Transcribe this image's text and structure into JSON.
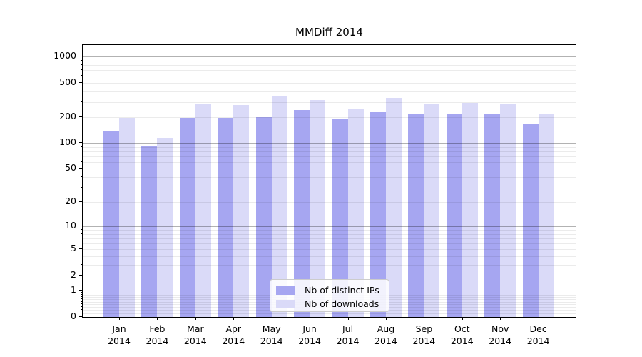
{
  "title": "MMDiff 2014",
  "colors": {
    "ips_bar": "#a6a6f1",
    "downloads_bar": "#dadaf8",
    "grid_major": "rgba(0,0,0,0.30)",
    "grid_minor": "rgba(0,0,0,0.08)",
    "spine": "#000000",
    "text": "#000000",
    "legend_border": "#cccccc",
    "legend_background": "rgba(255,255,255,0.85)"
  },
  "legend": {
    "items": [
      {
        "label": "Nb of distinct IPs",
        "series": "ips"
      },
      {
        "label": "Nb of downloads",
        "series": "downloads"
      }
    ]
  },
  "y_axis": {
    "tick_labels": [
      "1000",
      "500",
      "200",
      "100",
      "50",
      "20",
      "10",
      "5",
      "2",
      "1",
      "0"
    ],
    "tick_values": [
      1000,
      500,
      200,
      100,
      50,
      20,
      10,
      5,
      2,
      1,
      0
    ],
    "major_decades": [
      1,
      10,
      100,
      1000
    ],
    "minor_values": [
      0.1,
      0.2,
      0.3,
      0.4,
      0.5,
      0.6,
      0.7,
      0.8,
      0.9,
      2,
      3,
      4,
      5,
      6,
      7,
      8,
      9,
      20,
      30,
      40,
      50,
      60,
      70,
      80,
      90,
      200,
      300,
      400,
      500,
      600,
      700,
      800,
      900
    ]
  },
  "chart_data": {
    "type": "bar",
    "title": "MMDiff 2014",
    "categories": [
      "Jan 2014",
      "Feb 2014",
      "Mar 2014",
      "Apr 2014",
      "May 2014",
      "Jun 2014",
      "Jul 2014",
      "Aug 2014",
      "Sep 2014",
      "Oct 2014",
      "Nov 2014",
      "Dec 2014"
    ],
    "series": [
      {
        "name": "Nb of distinct IPs",
        "color": "#a6a6f1",
        "values": [
          137,
          94,
          196,
          196,
          201,
          241,
          188,
          228,
          215,
          216,
          214,
          167
        ]
      },
      {
        "name": "Nb of downloads",
        "color": "#dadaf8",
        "values": [
          196,
          116,
          286,
          276,
          357,
          315,
          245,
          335,
          286,
          295,
          287,
          215
        ]
      }
    ],
    "xlabel": "",
    "ylabel": "",
    "y_scale": "log1p",
    "ylim": [
      0,
      1500
    ],
    "y_ticks": [
      0,
      1,
      2,
      5,
      10,
      20,
      50,
      100,
      200,
      500,
      1000
    ],
    "grid": true,
    "legend_position": "lower center"
  }
}
